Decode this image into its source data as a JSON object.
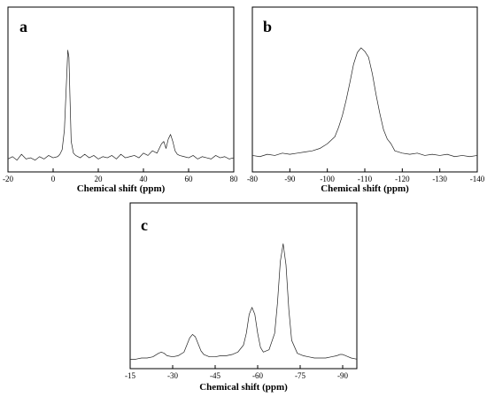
{
  "chart_data": [
    {
      "panel": "a",
      "type": "line",
      "xlabel": "Chemical shift (ppm)",
      "xlim": [
        -20,
        80
      ],
      "xticks": [
        -20,
        0,
        20,
        40,
        60,
        80
      ],
      "grid": false,
      "y_visible": false,
      "x": [
        -20,
        -18,
        -16,
        -14,
        -12,
        -10,
        -8,
        -6,
        -4,
        -2,
        0,
        2,
        3,
        4,
        5,
        6,
        6.5,
        7,
        7.5,
        8,
        9,
        10,
        12,
        14,
        16,
        18,
        20,
        22,
        24,
        26,
        28,
        30,
        32,
        34,
        36,
        38,
        40,
        42,
        44,
        46,
        48,
        49,
        50,
        51,
        52,
        53,
        54,
        55,
        56,
        58,
        60,
        62,
        64,
        66,
        68,
        70,
        72,
        74,
        76,
        78,
        80
      ],
      "y": [
        0.05,
        0.07,
        0.04,
        0.09,
        0.05,
        0.06,
        0.04,
        0.07,
        0.05,
        0.08,
        0.06,
        0.07,
        0.09,
        0.13,
        0.3,
        0.75,
        0.98,
        0.92,
        0.55,
        0.2,
        0.1,
        0.08,
        0.06,
        0.09,
        0.06,
        0.08,
        0.05,
        0.07,
        0.06,
        0.08,
        0.05,
        0.09,
        0.06,
        0.07,
        0.08,
        0.06,
        0.1,
        0.08,
        0.12,
        0.1,
        0.18,
        0.2,
        0.14,
        0.22,
        0.26,
        0.2,
        0.12,
        0.09,
        0.08,
        0.07,
        0.06,
        0.08,
        0.05,
        0.07,
        0.06,
        0.05,
        0.08,
        0.06,
        0.07,
        0.05,
        0.06
      ]
    },
    {
      "panel": "b",
      "type": "line",
      "xlabel": "Chemical shift (ppm)",
      "xlim": [
        -80,
        -140
      ],
      "xticks": [
        -80,
        -90,
        -100,
        -110,
        -120,
        -130,
        -140
      ],
      "grid": false,
      "y_visible": false,
      "x": [
        -80,
        -82,
        -84,
        -86,
        -88,
        -90,
        -92,
        -94,
        -96,
        -98,
        -100,
        -102,
        -103,
        -104,
        -105,
        -106,
        -107,
        -108,
        -109,
        -110,
        -111,
        -112,
        -113,
        -114,
        -115,
        -116,
        -117,
        -118,
        -120,
        -122,
        -124,
        -126,
        -128,
        -130,
        -132,
        -134,
        -136,
        -138,
        -140
      ],
      "y": [
        0.08,
        0.07,
        0.09,
        0.08,
        0.1,
        0.09,
        0.1,
        0.11,
        0.12,
        0.14,
        0.18,
        0.24,
        0.32,
        0.42,
        0.55,
        0.7,
        0.86,
        0.96,
        1.0,
        0.97,
        0.92,
        0.78,
        0.6,
        0.44,
        0.3,
        0.22,
        0.18,
        0.12,
        0.1,
        0.09,
        0.1,
        0.08,
        0.09,
        0.08,
        0.09,
        0.07,
        0.08,
        0.07,
        0.08
      ]
    },
    {
      "panel": "c",
      "type": "line",
      "xlabel": "Chemical shift (ppm)",
      "xlim": [
        -15,
        -95
      ],
      "xticks": [
        -15,
        -30,
        -45,
        -60,
        -75,
        -90
      ],
      "grid": false,
      "y_visible": false,
      "x": [
        -15,
        -17,
        -19,
        -21,
        -23,
        -25,
        -26,
        -27,
        -28,
        -30,
        -32,
        -34,
        -35,
        -36,
        -37,
        -38,
        -39,
        -40,
        -41,
        -43,
        -45,
        -47,
        -49,
        -51,
        -53,
        -55,
        -56,
        -57,
        -58,
        -59,
        -60,
        -61,
        -62,
        -64,
        -66,
        -67,
        -68,
        -69,
        -70,
        -71,
        -72,
        -74,
        -76,
        -78,
        -80,
        -82,
        -84,
        -86,
        -88,
        -89,
        -90,
        -91,
        -92,
        -93,
        -95
      ],
      "y": [
        0.02,
        0.02,
        0.03,
        0.03,
        0.04,
        0.07,
        0.08,
        0.07,
        0.05,
        0.04,
        0.05,
        0.08,
        0.14,
        0.2,
        0.23,
        0.21,
        0.15,
        0.09,
        0.06,
        0.04,
        0.04,
        0.05,
        0.05,
        0.06,
        0.08,
        0.14,
        0.24,
        0.4,
        0.46,
        0.4,
        0.24,
        0.12,
        0.08,
        0.1,
        0.24,
        0.5,
        0.85,
        1.0,
        0.82,
        0.44,
        0.18,
        0.07,
        0.05,
        0.04,
        0.03,
        0.03,
        0.03,
        0.04,
        0.05,
        0.06,
        0.06,
        0.05,
        0.04,
        0.03,
        0.02
      ]
    }
  ]
}
